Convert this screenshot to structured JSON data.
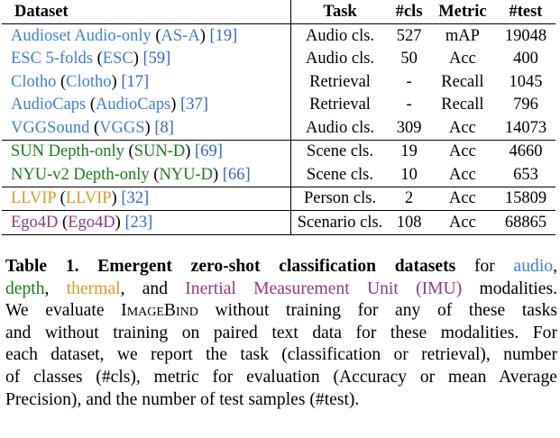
{
  "table": {
    "headers": {
      "dataset": "Dataset",
      "task": "Task",
      "cls": "#cls",
      "metric": "Metric",
      "test": "#test"
    },
    "rows": [
      {
        "name": "Audioset Audio-only",
        "abbr": "AS-A",
        "ref": "19",
        "task": "Audio cls.",
        "cls": "527",
        "metric": "mAP",
        "test": "19048",
        "modality": "audio"
      },
      {
        "name": "ESC 5-folds",
        "abbr": "ESC",
        "ref": "59",
        "task": "Audio cls.",
        "cls": "50",
        "metric": "Acc",
        "test": "400",
        "modality": "audio"
      },
      {
        "name": "Clotho",
        "abbr": "Clotho",
        "ref": "17",
        "task": "Retrieval",
        "cls": "-",
        "metric": "Recall",
        "test": "1045",
        "modality": "audio"
      },
      {
        "name": "AudioCaps",
        "abbr": "AudioCaps",
        "ref": "37",
        "task": "Retrieval",
        "cls": "-",
        "metric": "Recall",
        "test": "796",
        "modality": "audio"
      },
      {
        "name": "VGGSound",
        "abbr": "VGGS",
        "ref": "8",
        "task": "Audio cls.",
        "cls": "309",
        "metric": "Acc",
        "test": "14073",
        "modality": "audio"
      },
      {
        "name": "SUN Depth-only",
        "abbr": "SUN-D",
        "ref": "69",
        "task": "Scene cls.",
        "cls": "19",
        "metric": "Acc",
        "test": "4660",
        "modality": "depth"
      },
      {
        "name": "NYU-v2 Depth-only",
        "abbr": "NYU-D",
        "ref": "66",
        "task": "Scene cls.",
        "cls": "10",
        "metric": "Acc",
        "test": "653",
        "modality": "depth"
      },
      {
        "name": "LLVIP",
        "abbr": "LLVIP",
        "ref": "32",
        "task": "Person cls.",
        "cls": "2",
        "metric": "Acc",
        "test": "15809",
        "modality": "thermal"
      },
      {
        "name": "Ego4D",
        "abbr": "Ego4D",
        "ref": "23",
        "task": "Scenario cls.",
        "cls": "108",
        "metric": "Acc",
        "test": "68865",
        "modality": "imu"
      }
    ]
  },
  "caption": {
    "label": "Table 1.",
    "title": "Emergent zero-shot classification datasets",
    "for_text": "for",
    "mod_audio": "audio",
    "mod_depth": "depth",
    "mod_thermal": "thermal",
    "mod_imu": "Inertial Measurement Unit (IMU)",
    "modalities_text": "modalities.",
    "line2_sep": ",",
    "and_text": ", and",
    "we_evaluate": "We evaluate",
    "model_name": "ImageBind",
    "line3_rest": "without training for any of these tasks",
    "line4": "and without training on paired text data for these modalities. For",
    "line5": "each dataset, we report the task (classification or retrieval), number",
    "line6": "of classes (#cls), metric for evaluation (Accuracy or mean Average",
    "line7": "Precision), and the number of test samples (#test)."
  },
  "colors": {
    "audio": "#3d7fd6",
    "depth": "#1d7a1d",
    "thermal": "#d99a1f",
    "imu": "#8e3d7e",
    "citation": "#3366cc"
  }
}
